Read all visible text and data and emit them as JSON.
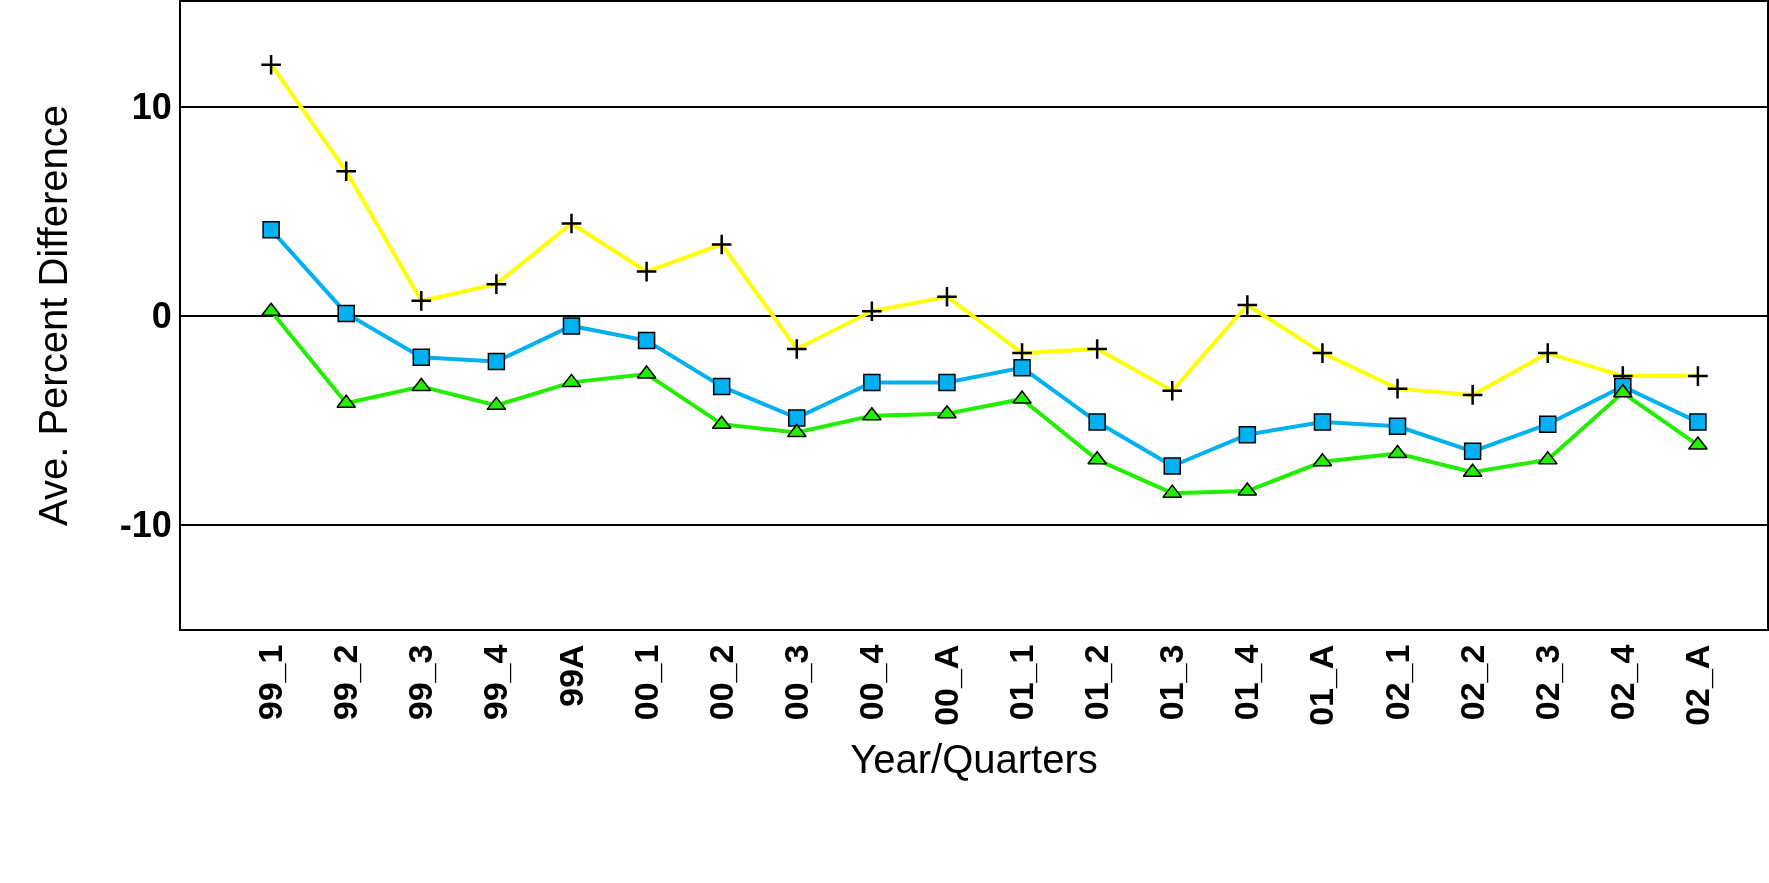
{
  "chart_data": {
    "type": "line",
    "xlabel": "Year/Quarters",
    "ylabel": "Ave. Percent Difference",
    "categories": [
      "99_1",
      "99_2",
      "99_3",
      "99_4",
      "99A",
      "00_1",
      "00_2",
      "00_3",
      "00_4",
      "00_A",
      "01_1",
      "01_2",
      "01_3",
      "01_4",
      "01_A",
      "02_1",
      "02_2",
      "02_3",
      "02_4",
      "02_A"
    ],
    "series": [
      {
        "color": "#ffff00",
        "marker": "cross",
        "values": [
          12.0,
          6.9,
          0.7,
          1.5,
          4.4,
          2.1,
          3.4,
          -1.6,
          0.2,
          0.9,
          -1.8,
          -1.6,
          -3.6,
          0.5,
          -1.8,
          -3.5,
          -3.8,
          -1.8,
          -2.9,
          -2.9
        ]
      },
      {
        "color": "#00b0f0",
        "marker": "square",
        "values": [
          4.1,
          0.1,
          -2.0,
          -2.2,
          -0.5,
          -1.2,
          -3.4,
          -4.9,
          -3.2,
          -3.2,
          -2.5,
          -5.1,
          -7.2,
          -5.7,
          -5.1,
          -5.3,
          -6.5,
          -5.2,
          -3.4,
          -5.1
        ]
      },
      {
        "color": "#22ee00",
        "marker": "triangle",
        "values": [
          0.2,
          -4.2,
          -3.4,
          -4.3,
          -3.2,
          -2.8,
          -5.2,
          -5.6,
          -4.8,
          -4.7,
          -4.0,
          -6.9,
          -8.5,
          -8.4,
          -7.0,
          -6.6,
          -7.5,
          -6.9,
          -3.7,
          -6.2
        ]
      }
    ],
    "ylim": [
      -15,
      15
    ],
    "yticks": [
      -10,
      0,
      10
    ],
    "grid": "y",
    "legend": false,
    "line_style": "solid"
  }
}
